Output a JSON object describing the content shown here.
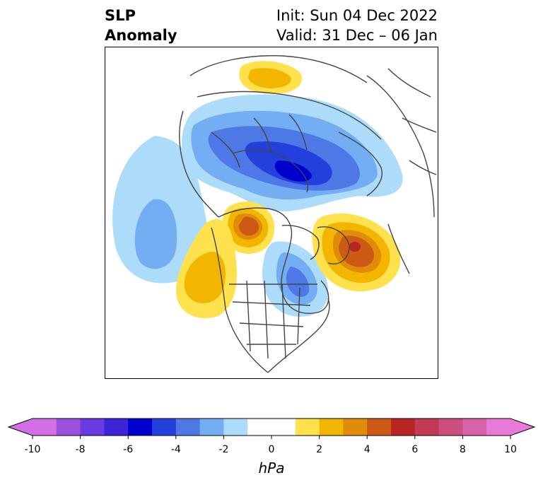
{
  "title": {
    "left_line1": "SLP",
    "left_line2": "Anomaly",
    "right_line1": "Init: Sun 04 Dec 2022",
    "right_line2": "Valid: 31 Dec – 06 Jan"
  },
  "map": {
    "projection": "polar stereographic, North America / Arctic",
    "anomalies": [
      {
        "name": "siberia-arctic-low",
        "sign": "negative",
        "peak_hPa": -6
      },
      {
        "name": "north-pacific-low",
        "sign": "negative",
        "peak_hPa": -3
      },
      {
        "name": "hudson-bay-low",
        "sign": "negative",
        "peak_hPa": -4
      },
      {
        "name": "greenland-high",
        "sign": "positive",
        "peak_hPa": 6
      },
      {
        "name": "alaska-high",
        "sign": "positive",
        "peak_hPa": 4
      },
      {
        "name": "west-coast-high",
        "sign": "positive",
        "peak_hPa": 3
      },
      {
        "name": "scandinavia-high",
        "sign": "positive",
        "peak_hPa": 2
      }
    ]
  },
  "colorbar": {
    "units": "hPa",
    "ticks": [
      "-10",
      "-8",
      "-6",
      "-4",
      "-2",
      "0",
      "2",
      "4",
      "6",
      "8",
      "10"
    ],
    "colors": [
      "#d46ee6",
      "#9a52de",
      "#6a3be0",
      "#3a24d6",
      "#0000cd",
      "#2340dc",
      "#4d78e6",
      "#74aef2",
      "#addcfa",
      "#ffffff",
      "#ffffff",
      "#ffe14d",
      "#f2b600",
      "#e08c0a",
      "#cc5a14",
      "#b82525",
      "#c23a55",
      "#cc4f7d",
      "#d963a8",
      "#e87ad9"
    ],
    "extend": "both"
  }
}
